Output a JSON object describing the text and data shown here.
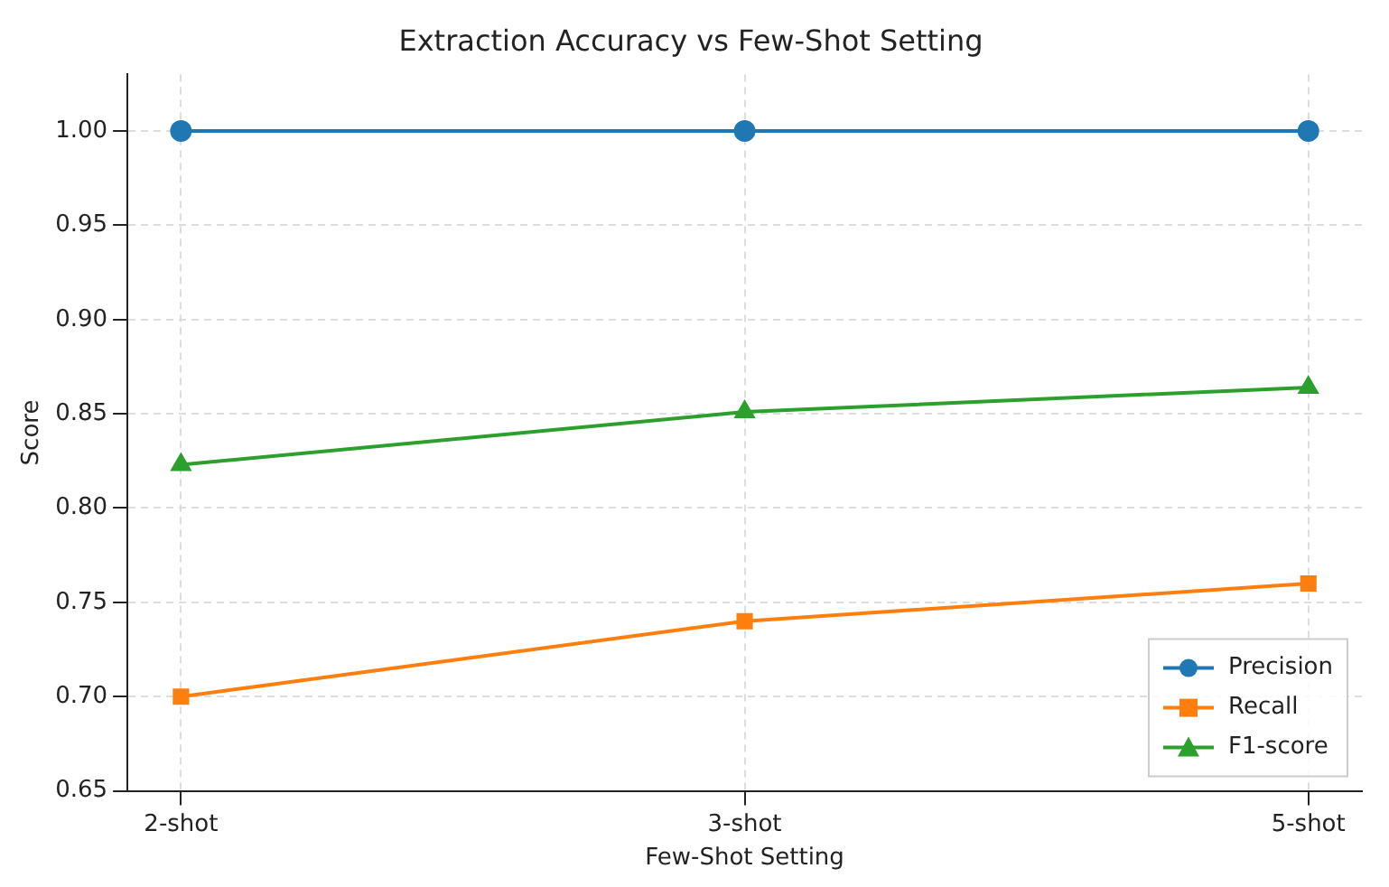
{
  "chart_data": {
    "type": "line",
    "title": "Extraction Accuracy vs Few-Shot Setting",
    "xlabel": "Few-Shot Setting",
    "ylabel": "Score",
    "categories": [
      "2-shot",
      "3-shot",
      "5-shot"
    ],
    "series": [
      {
        "name": "Precision",
        "color": "#1f77b4",
        "marker": "circle",
        "values": [
          1.0,
          1.0,
          1.0
        ]
      },
      {
        "name": "Recall",
        "color": "#ff7f0e",
        "marker": "square",
        "values": [
          0.7,
          0.74,
          0.76
        ]
      },
      {
        "name": "F1-score",
        "color": "#2ca02c",
        "marker": "triangle",
        "values": [
          0.823,
          0.851,
          0.864
        ]
      }
    ],
    "ylim": [
      0.65,
      1.03
    ],
    "yticks": [
      0.65,
      {
        "value": 0.7,
        "label": "0.70"
      },
      0.75,
      {
        "value": 0.8,
        "label": "0.80"
      },
      0.85,
      {
        "value": 0.9,
        "label": "0.90"
      },
      0.95,
      {
        "value": 1,
        "label": "1.00"
      }
    ],
    "grid": true,
    "legend": "bottom right",
    "line_style": "solid"
  }
}
